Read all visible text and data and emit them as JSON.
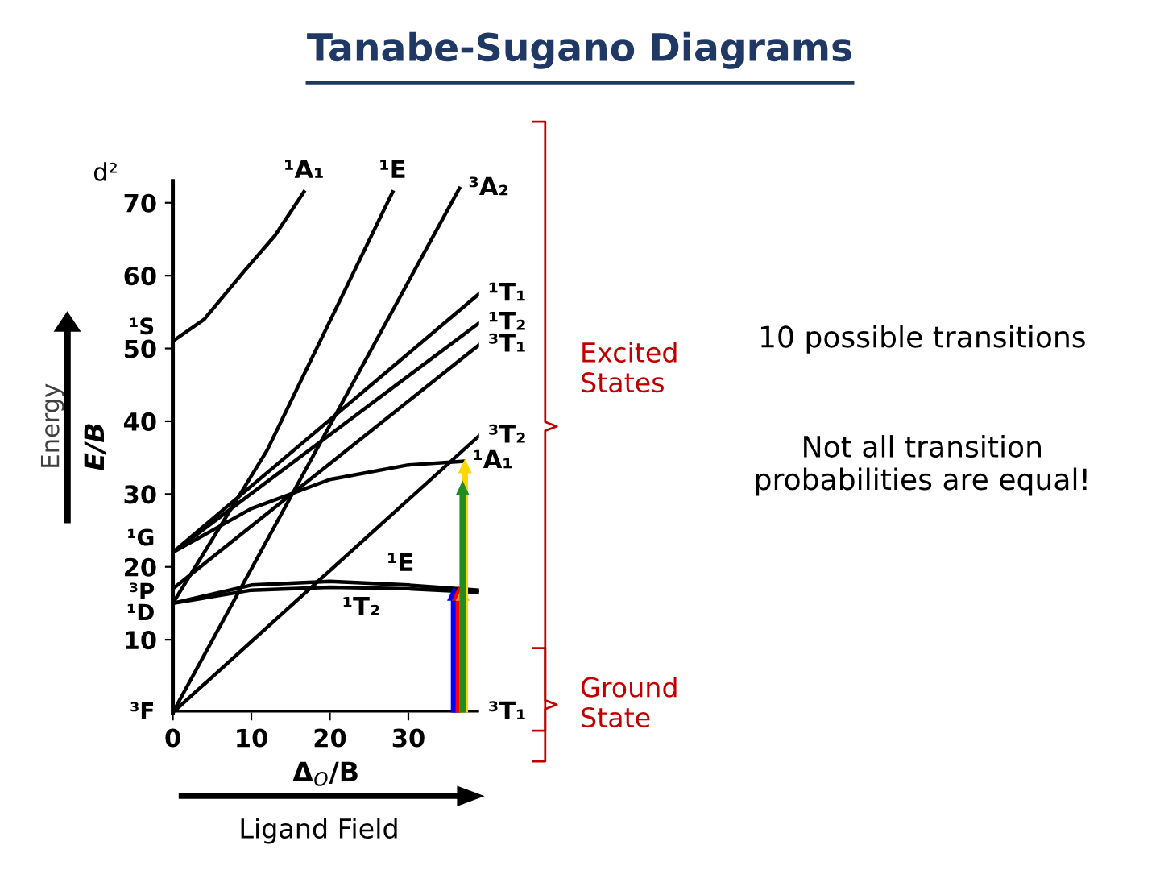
{
  "chart_data": {
    "type": "line",
    "title": "Tanabe-Sugano Diagrams",
    "xlabel": "Δ$_{O}$/B",
    "ylabel": "E/B",
    "xlim": [
      0,
      39
    ],
    "ylim": [
      0,
      73
    ],
    "xticks": [
      0,
      10,
      20,
      30
    ],
    "yticks": [
      10,
      20,
      30,
      40,
      50,
      60,
      70
    ],
    "grid": false,
    "legend": false,
    "marker": "none",
    "line_style": "solid",
    "series": [
      {
        "color": "#000000",
        "x": [
          0,
          39
        ],
        "values": [
          0,
          0
        ]
      },
      {
        "color": "#000000",
        "x": [
          0,
          39
        ],
        "values": [
          0,
          38
        ]
      },
      {
        "color": "#000000",
        "x": [
          0,
          36.5
        ],
        "values": [
          0,
          72
        ]
      },
      {
        "color": "#000000",
        "x": [
          0,
          39
        ],
        "values": [
          17,
          50.5
        ]
      },
      {
        "color": "#000000",
        "x": [
          0,
          10,
          20,
          30,
          39
        ],
        "values": [
          15,
          17.5,
          18,
          17.5,
          16.8
        ]
      },
      {
        "color": "#000000",
        "x": [
          0,
          10,
          20,
          30,
          39
        ],
        "values": [
          15,
          16.8,
          17.2,
          17,
          16.5
        ]
      },
      {
        "color": "#000000",
        "x": [
          0,
          10,
          20,
          30,
          37
        ],
        "values": [
          22,
          28,
          32,
          34,
          34.5
        ]
      },
      {
        "color": "#000000",
        "x": [
          0,
          39
        ],
        "values": [
          22,
          53.5
        ]
      },
      {
        "color": "#000000",
        "x": [
          0,
          39
        ],
        "values": [
          22,
          57.5
        ]
      },
      {
        "color": "#000000",
        "x": [
          0,
          12,
          28
        ],
        "values": [
          15,
          36,
          71.5
        ]
      },
      {
        "color": "#000000",
        "x": [
          0,
          4,
          9,
          13,
          16.7
        ],
        "values": [
          51,
          54,
          60.5,
          65.5,
          71.5
        ]
      }
    ],
    "annotations": [
      {
        "text": "¹A₁",
        "x": 16.7,
        "y": 71.5
      },
      {
        "text": "¹E",
        "x": 28,
        "y": 71.5
      },
      {
        "text": "³A₂",
        "x": 36.5,
        "y": 72
      },
      {
        "text": "¹T₁",
        "x": 39,
        "y": 57.5
      },
      {
        "text": "¹T₂",
        "x": 39,
        "y": 53.5
      },
      {
        "text": "³T₁",
        "x": 39,
        "y": 50.5
      },
      {
        "text": "³T₂",
        "x": 39,
        "y": 38
      },
      {
        "text": "¹A₁",
        "x": 37,
        "y": 34.5
      },
      {
        "text": "¹E",
        "x": 29,
        "y": 17.5
      },
      {
        "text": "¹T₂",
        "x": 24,
        "y": 17.2
      },
      {
        "text": "³T₁",
        "x": 39,
        "y": 0
      },
      {
        "text": "¹S",
        "x": 0,
        "y": 51
      },
      {
        "text": "¹G",
        "x": 0,
        "y": 22
      },
      {
        "text": "³P",
        "x": 0,
        "y": 17
      },
      {
        "text": "¹D",
        "x": 0,
        "y": 15
      },
      {
        "text": "³F",
        "x": 0,
        "y": 0
      },
      "d²",
      "Energy",
      "Ligand Field",
      "Excited\nStates",
      "Ground\nState",
      "10 possible transitions",
      "Not all transition\nprobabilities are equal!"
    ]
  }
}
